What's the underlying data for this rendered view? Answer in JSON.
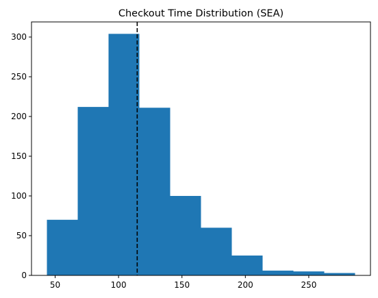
{
  "chart_data": {
    "type": "bar",
    "title": "Checkout Time Distribution (SEA)",
    "xlabel": "",
    "ylabel": "",
    "bins": [
      43.5,
      67.8,
      92.1,
      116.4,
      140.7,
      165.0,
      189.3,
      213.6,
      237.9,
      262.2,
      286.5
    ],
    "counts": [
      70,
      212,
      304,
      211,
      100,
      60,
      25,
      6,
      5,
      3
    ],
    "xlim": [
      31.35,
      298.65
    ],
    "ylim": [
      0,
      319
    ],
    "xticks": [
      50,
      100,
      150,
      200,
      250
    ],
    "yticks": [
      0,
      50,
      100,
      150,
      200,
      250,
      300
    ],
    "reference_line": {
      "x": 114.7,
      "style": "dashed",
      "color": "#000000"
    },
    "bar_color": "#1f77b4",
    "grid": false
  }
}
